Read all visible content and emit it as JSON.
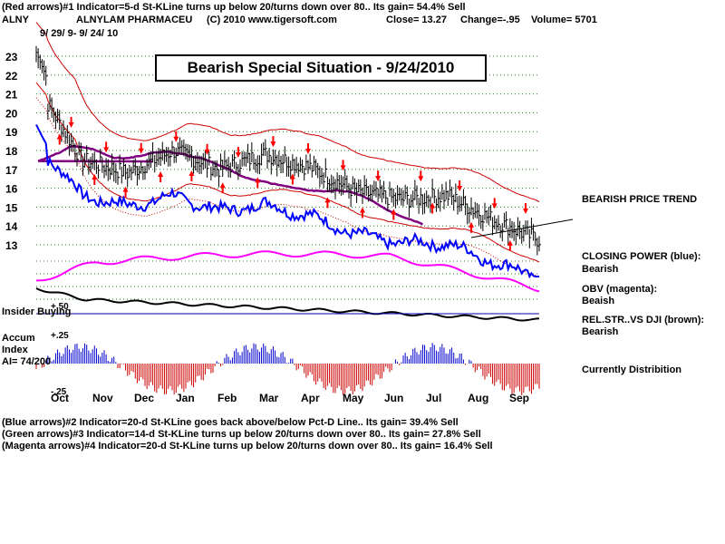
{
  "header": {
    "line1": "(Red arrows)#1 Indicator=5-d St-KLine turns up below 20/turns down over 80.. Its gain= 54.4% Sell",
    "ticker": "ALNY",
    "company": "ALNYLAM PHARMACEU",
    "copyright": "(C) 2010 www.tigersoft.com",
    "close": "Close=  13.27",
    "change": "Change=-.95",
    "volume": "Volume= 5701",
    "date_range": "9/ 29/ 9-  9/ 24/ 10"
  },
  "title": "Bearish Special Situation - 9/24/2010",
  "labels": {
    "insider": "Insider Buying",
    "plus50": "+.50",
    "plus25": "+.25",
    "minus25": "-.25",
    "accum1": "Accum",
    "accum2": "Index",
    "accum3": "AI= 74/200"
  },
  "right_notes": {
    "trend": "BEARISH PRICE TREND",
    "cp1": "CLOSING POWER (blue):",
    "cp2": "Bearish",
    "obv1": "OBV (magenta):",
    "obv2": "Beaish",
    "rel1": "REL.STR..VS DJI (brown):",
    "rel2": "Bearish",
    "dist": "Currently Distribition"
  },
  "footer": {
    "l1": "(Blue arrows)#2 Indicator=20-d St-KLine goes back above/below Pct-D Line.. Its gain= 39.4% Sell",
    "l2": "(Green arrows)#3 Indicator=14-d St-KLine turns up below 20/turns down over 80.. Its gain= 27.8% Sell",
    "l3": "(Magenta arrows)#4 Indicator=20-d St-KLine turns up below 20/turns down over 80.. Its gain= 16.4% Sell"
  },
  "chart_data": {
    "type": "line",
    "y_ticks": [
      23,
      22,
      21,
      20,
      19,
      18,
      17,
      16,
      15,
      14,
      13
    ],
    "months": [
      "Oct",
      "Nov",
      "Dec",
      "Jan",
      "Feb",
      "Mar",
      "Apr",
      "May",
      "Jun",
      "Jul",
      "Aug",
      "Sep"
    ],
    "price_close_monthly": [
      21.5,
      17.5,
      16.8,
      18.0,
      17.0,
      17.8,
      17.1,
      15.8,
      15.4,
      15.6,
      14.3,
      13.27
    ],
    "series": [
      {
        "name": "CLOSING POWER (blue)",
        "color": "#0000ff"
      },
      {
        "name": "OBV (magenta)",
        "color": "#ff00ff"
      },
      {
        "name": "REL.STR..VS DJI (brown)",
        "color": "#000000"
      }
    ],
    "grid": true
  },
  "colors": {
    "price": "#000000",
    "band": "#cc0000",
    "ma": "#800080",
    "closing_power": "#0000ff",
    "obv": "#ff00ff",
    "accum_pos": "#0000cc",
    "accum_neg": "#cc0000",
    "arrows": "#ff0000"
  }
}
